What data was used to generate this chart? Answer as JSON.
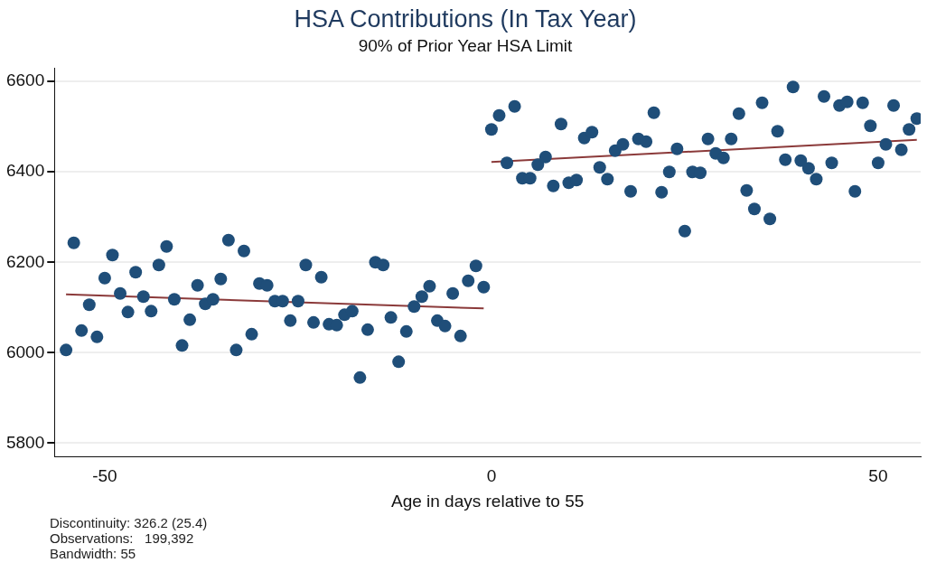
{
  "chart_data": {
    "type": "scatter",
    "title": "HSA Contributions (In Tax Year)",
    "subtitle": "90% of Prior Year HSA Limit",
    "xlabel": "Age in days relative to 55",
    "annotations": [
      "Discontinuity: 326.2 (25.4)",
      "Observations:   199,392",
      "Bandwidth: 55"
    ],
    "xlim": [
      -56.5,
      55.5
    ],
    "xticks": [
      -50,
      0,
      50
    ],
    "ylim": [
      5770,
      6630
    ],
    "yticks": [
      5800,
      6000,
      6200,
      6400,
      6600
    ],
    "grid": "y",
    "legend": false,
    "marker": "circle",
    "series": [
      {
        "color": "#1f4e79",
        "x": [
          -55,
          -54,
          -53,
          -52,
          -51,
          -50,
          -49,
          -48,
          -47,
          -46,
          -45,
          -44,
          -43,
          -42,
          -41,
          -40,
          -39,
          -38,
          -37,
          -36,
          -35,
          -34,
          -33,
          -32,
          -31,
          -30,
          -29,
          -28,
          -27,
          -26,
          -25,
          -24,
          -23,
          -22,
          -21,
          -20,
          -19,
          -18,
          -17,
          -16,
          -15,
          -14,
          -13,
          -12,
          -11,
          -10,
          -9,
          -8,
          -7,
          -6,
          -5,
          -4,
          -3,
          -2,
          -1
        ],
        "values": [
          6006,
          6243,
          6049,
          6106,
          6035,
          6165,
          6216,
          6131,
          6090,
          6178,
          6124,
          6092,
          6194,
          6235,
          6118,
          6016,
          6073,
          6149,
          6108,
          6118,
          6163,
          6249,
          6006,
          6225,
          6041,
          6153,
          6149,
          6114,
          6114,
          6071,
          6114,
          6194,
          6067,
          6167,
          6063,
          6061,
          6084,
          6092,
          5945,
          6051,
          6200,
          6194,
          6078,
          5980,
          6047,
          6102,
          6124,
          6147,
          6071,
          6059,
          6131,
          6037,
          6159,
          6192,
          6145
        ]
      },
      {
        "color": "#1f4e79",
        "x": [
          0,
          1,
          2,
          3,
          4,
          5,
          6,
          7,
          8,
          9,
          10,
          11,
          12,
          13,
          14,
          15,
          16,
          17,
          18,
          19,
          20,
          21,
          22,
          23,
          24,
          25,
          26,
          27,
          28,
          29,
          30,
          31,
          32,
          33,
          34,
          35,
          36,
          37,
          38,
          39,
          40,
          41,
          42,
          43,
          44,
          45,
          46,
          47,
          48,
          49,
          50,
          51,
          52,
          53,
          54,
          55
        ],
        "values": [
          6494,
          6525,
          6420,
          6545,
          6386,
          6386,
          6416,
          6433,
          6369,
          6506,
          6376,
          6382,
          6475,
          6488,
          6410,
          6384,
          6447,
          6461,
          6357,
          6473,
          6467,
          6531,
          6355,
          6400,
          6451,
          6269,
          6400,
          6398,
          6473,
          6441,
          6431,
          6473,
          6529,
          6359,
          6318,
          6553,
          6296,
          6490,
          6427,
          6588,
          6425,
          6408,
          6384,
          6567,
          6420,
          6547,
          6555,
          6357,
          6553,
          6502,
          6420,
          6461,
          6547,
          6449,
          6494,
          6518
        ]
      },
      {
        "type": "line",
        "color": "#8b3a3a",
        "marker": "none",
        "x": [
          -55,
          -1
        ],
        "values": [
          6129,
          6098
        ]
      },
      {
        "type": "line",
        "color": "#8b3a3a",
        "marker": "none",
        "x": [
          0,
          55
        ],
        "values": [
          6422,
          6471
        ]
      }
    ]
  }
}
